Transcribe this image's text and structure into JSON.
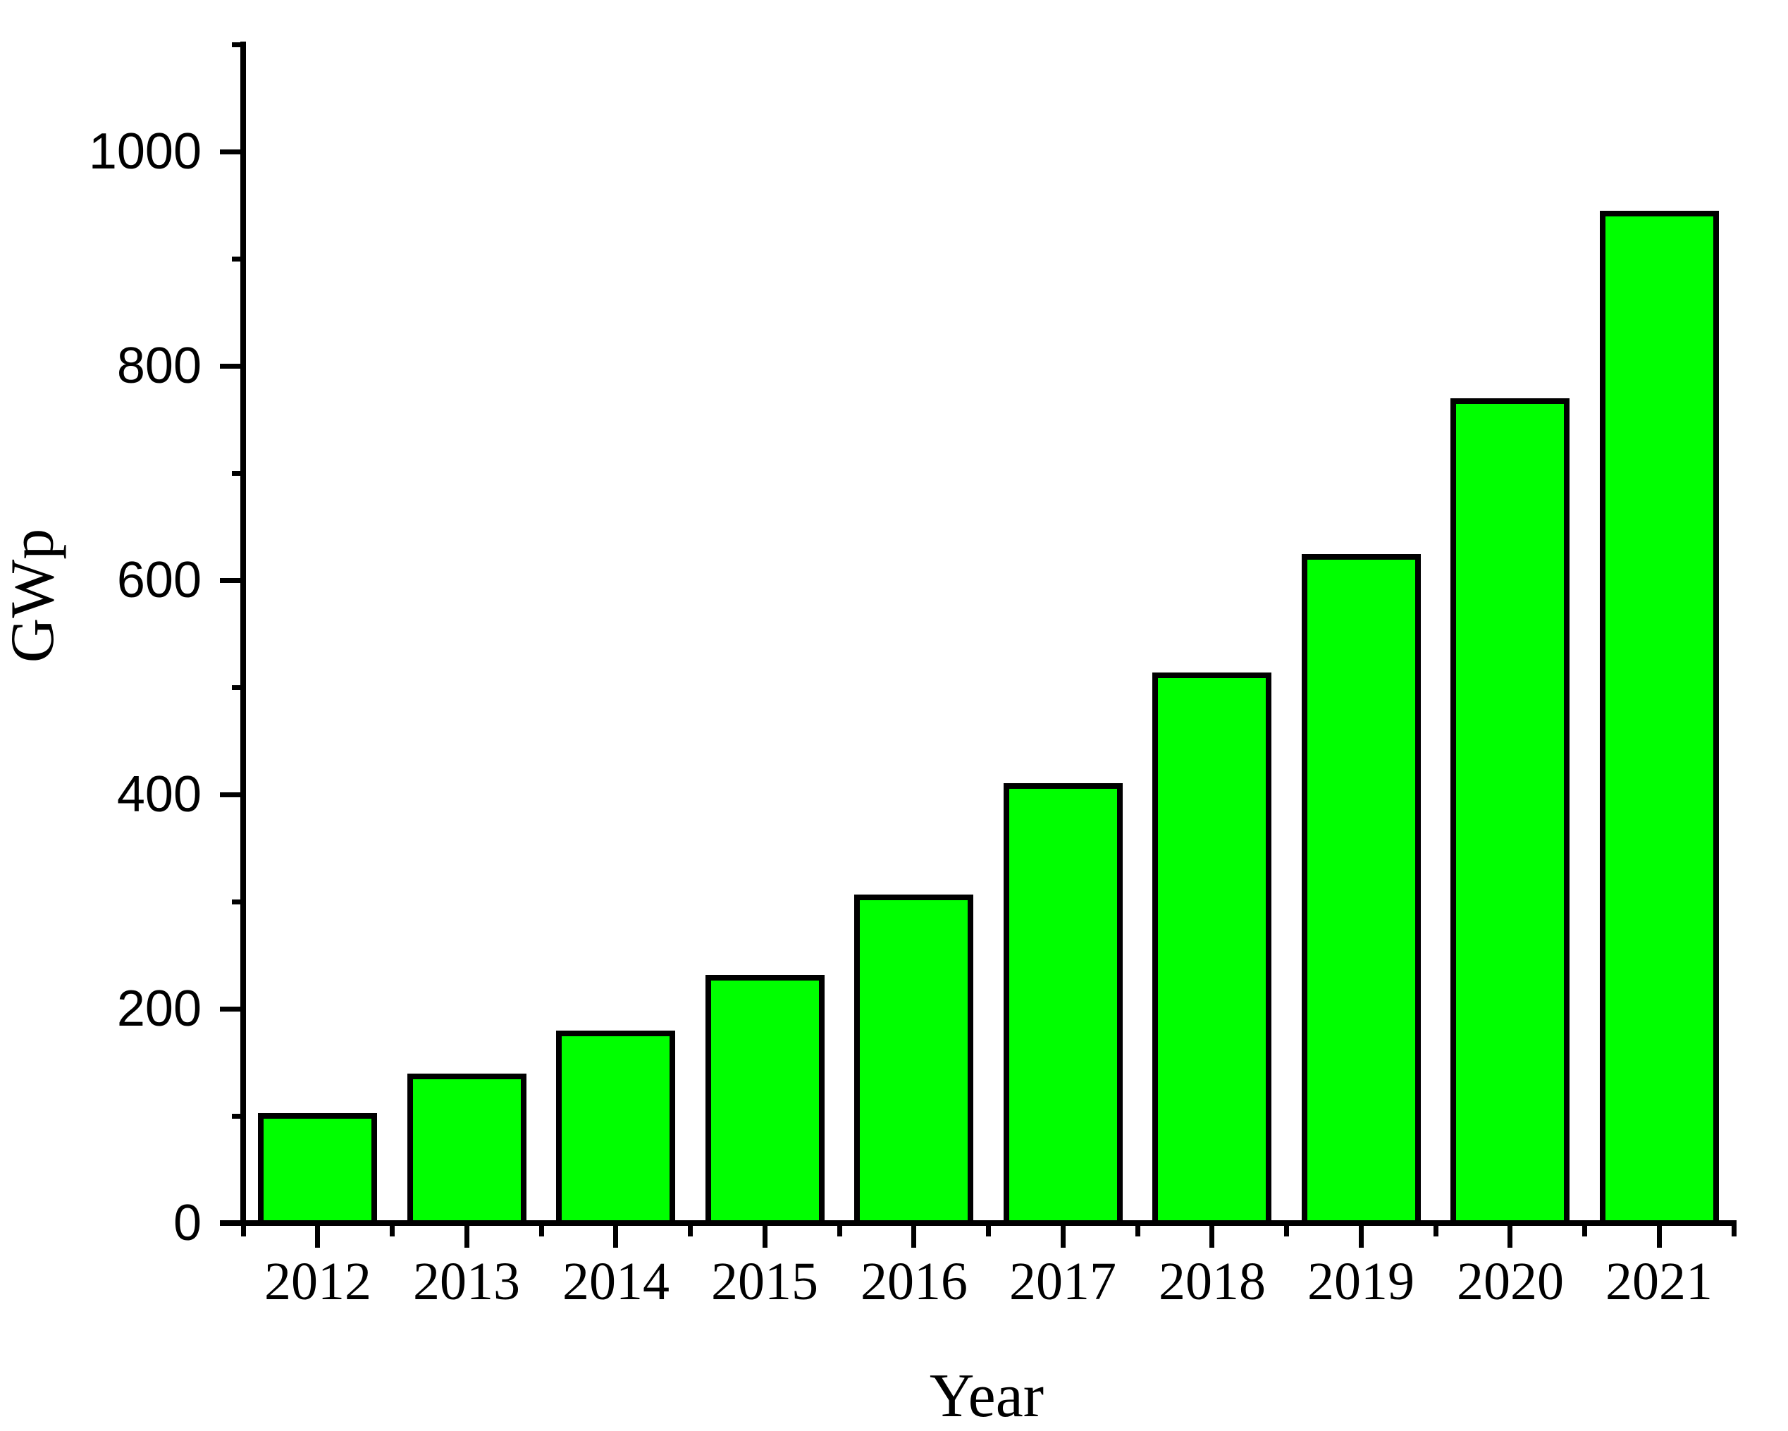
{
  "chart_data": {
    "type": "bar",
    "title": "",
    "xlabel": "Year",
    "ylabel": "GWp",
    "categories": [
      "2012",
      "2013",
      "2014",
      "2015",
      "2016",
      "2017",
      "2018",
      "2019",
      "2020",
      "2021"
    ],
    "values": [
      100,
      137,
      177,
      229,
      304,
      408,
      511,
      622,
      767,
      942
    ],
    "ylim": [
      0,
      1100
    ],
    "y_major_ticks": [
      0,
      200,
      400,
      600,
      800,
      1000
    ],
    "y_minor_ticks": [
      100,
      300,
      500,
      700,
      900,
      1100
    ],
    "y_major_tick_labels": [
      "0",
      "200",
      "400",
      "600",
      "800",
      "1000"
    ],
    "bar_fill": "#00FF00",
    "bar_border": "#000000",
    "axis_color": "#000000",
    "background": "#FFFFFF",
    "grid": false,
    "legend_position": "none",
    "ticks_direction": "out"
  }
}
